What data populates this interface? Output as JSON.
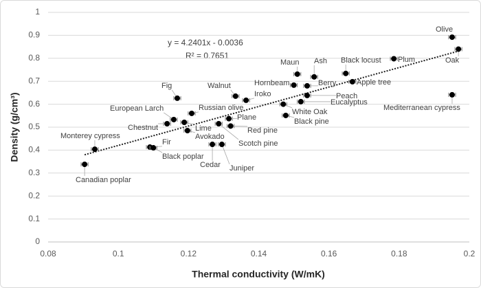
{
  "chart_data": {
    "type": "scatter",
    "x_label": "Thermal conductivity (W/mK)",
    "y_label": "Density (g/cm³)",
    "xlim": [
      0.08,
      0.2
    ],
    "xticks": [
      0.08,
      0.1,
      0.12,
      0.14,
      0.16,
      0.18,
      0.2
    ],
    "ylim": [
      0,
      1
    ],
    "yticks": [
      0,
      0.1,
      0.2,
      0.3,
      0.4,
      0.5,
      0.6,
      0.7,
      0.8,
      0.9,
      1
    ],
    "grid": true,
    "color": "#000000",
    "x_error": 0.001,
    "trendline": {
      "equation": "y = 4.2401x - 0.0036",
      "r_squared": "R² = 0.7651",
      "slope": 4.2401,
      "intercept": -0.0036
    },
    "points": [
      {
        "label": "Canadian poplar",
        "x": 0.0904,
        "y": 0.338
      },
      {
        "label": "Monterey cypress",
        "x": 0.0933,
        "y": 0.404
      },
      {
        "label": "Fir",
        "x": 0.109,
        "y": 0.413
      },
      {
        "label": "Black poplar",
        "x": 0.11,
        "y": 0.41
      },
      {
        "label": "Chestnut",
        "x": 0.1139,
        "y": 0.515
      },
      {
        "label": "European Larch",
        "x": 0.1158,
        "y": 0.533
      },
      {
        "label": "Fig",
        "x": 0.1168,
        "y": 0.626
      },
      {
        "label": "Lime",
        "x": 0.1188,
        "y": 0.521
      },
      {
        "label": "Russian olive",
        "x": 0.1209,
        "y": 0.56
      },
      {
        "label": "Avokado",
        "x": 0.1197,
        "y": 0.485
      },
      {
        "label": "Cedar",
        "x": 0.1268,
        "y": 0.425
      },
      {
        "label": "Juniper",
        "x": 0.1295,
        "y": 0.425
      },
      {
        "label": "Plane",
        "x": 0.1315,
        "y": 0.537
      },
      {
        "label": "Red pine",
        "x": 0.132,
        "y": 0.505
      },
      {
        "label": "Scotch pine",
        "x": 0.1286,
        "y": 0.515
      },
      {
        "label": "Walnut",
        "x": 0.1334,
        "y": 0.635
      },
      {
        "label": "Iroko",
        "x": 0.1364,
        "y": 0.617
      },
      {
        "label": "Black pine",
        "x": 0.1477,
        "y": 0.551
      },
      {
        "label": "White Oak",
        "x": 0.147,
        "y": 0.6
      },
      {
        "label": "Maun",
        "x": 0.151,
        "y": 0.731
      },
      {
        "label": "Hornbeam",
        "x": 0.15,
        "y": 0.683
      },
      {
        "label": "Ash",
        "x": 0.1558,
        "y": 0.719
      },
      {
        "label": "Berry",
        "x": 0.1538,
        "y": 0.68
      },
      {
        "label": "Peach",
        "x": 0.1538,
        "y": 0.638
      },
      {
        "label": "Eucalyptus",
        "x": 0.152,
        "y": 0.611
      },
      {
        "label": "Black locust",
        "x": 0.1648,
        "y": 0.734
      },
      {
        "label": "Apple tree",
        "x": 0.1667,
        "y": 0.698
      },
      {
        "label": "Plum",
        "x": 0.1785,
        "y": 0.798
      },
      {
        "label": "Olive",
        "x": 0.1951,
        "y": 0.892
      },
      {
        "label": "Oak",
        "x": 0.1969,
        "y": 0.84
      },
      {
        "label": "Mediterranean cypress",
        "x": 0.1951,
        "y": 0.641
      }
    ]
  }
}
